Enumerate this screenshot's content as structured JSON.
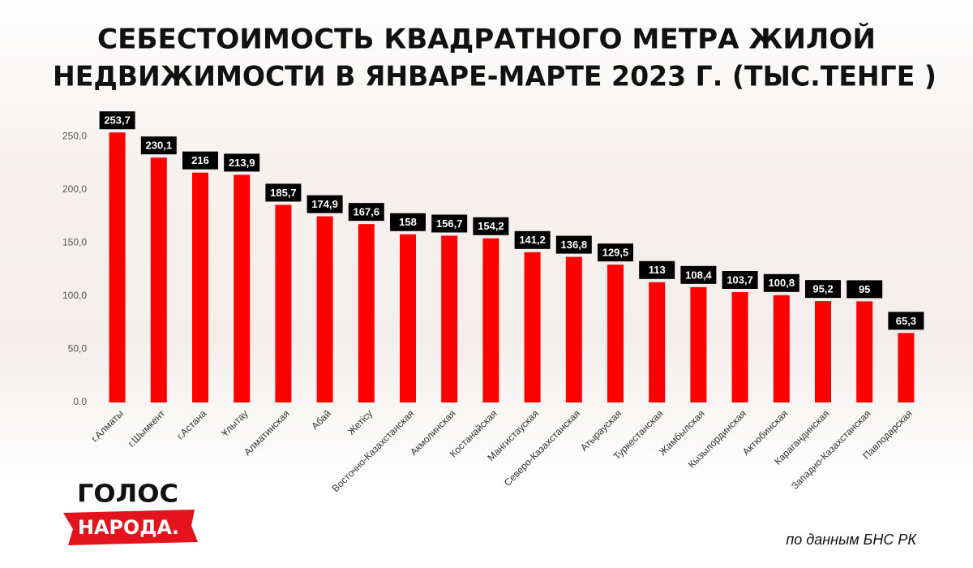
{
  "chart_data": {
    "type": "bar",
    "title": [
      "СЕБЕСТОИМОСТЬ КВАДРАТНОГО МЕТРА ЖИЛОЙ",
      "НЕДВИЖИМОСТИ В ЯНВАРЕ-МАРТЕ 2023 Г. (ТЫС.ТЕНГЕ )"
    ],
    "categories": [
      "г.Алматы",
      "г.Шымкент",
      "г.Астана",
      "Ұлытау",
      "Алматинская",
      "Абай",
      "Жетісу",
      "Восточно-Казахстанская",
      "Акмолинская",
      "Костанайская",
      "Мангистауская",
      "Северо-Казахстанская",
      "Атырауская",
      "Туркестанская",
      "Жамбылская",
      "Кызылординская",
      "Актюбинская",
      "Карагандинская",
      "Западно-Казахстанская",
      "Павлодарская"
    ],
    "values": [
      253.7,
      230.1,
      216,
      213.9,
      185.7,
      174.9,
      167.6,
      158,
      156.7,
      154.2,
      141.2,
      136.8,
      129.5,
      113,
      108.4,
      103.7,
      100.8,
      95.2,
      95,
      65.3
    ],
    "value_labels": [
      "253,7",
      "230,1",
      "216",
      "213,9",
      "185,7",
      "174,9",
      "167,6",
      "158",
      "156,7",
      "154,2",
      "141,2",
      "136,8",
      "129,5",
      "113",
      "108,4",
      "103,7",
      "100,8",
      "95,2",
      "95",
      "65,3"
    ],
    "color": "#ff0000",
    "ylim": [
      0,
      260
    ],
    "yticks": [
      {
        "value": 0,
        "label": "0.0"
      },
      {
        "value": 50,
        "label": "50,0"
      },
      {
        "value": 100,
        "label": "100,0"
      },
      {
        "value": 150,
        "label": "150,0"
      },
      {
        "value": 200,
        "label": "200,0"
      },
      {
        "value": 250,
        "label": "250,0"
      }
    ],
    "grid": false
  },
  "logo": [
    "ГОЛОС",
    "НАРОДА."
  ],
  "source": "по данным БНС РК"
}
